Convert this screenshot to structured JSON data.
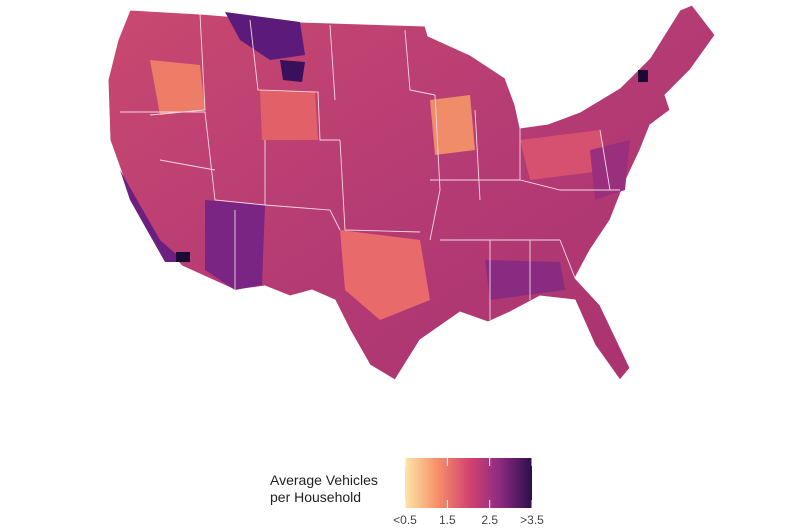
{
  "legend": {
    "title": "Average Vehicles per Household",
    "range": [
      0.5,
      3.5
    ],
    "ticks": [
      {
        "value": 0.5,
        "label": "<0.5"
      },
      1.5,
      2.5,
      {
        "value": 3.5,
        "label": ">3.5"
      }
    ],
    "colors": [
      "#fde6a8",
      "#f7916a",
      "#d4456f",
      "#8c2a81",
      "#2b0f4c"
    ]
  }
}
